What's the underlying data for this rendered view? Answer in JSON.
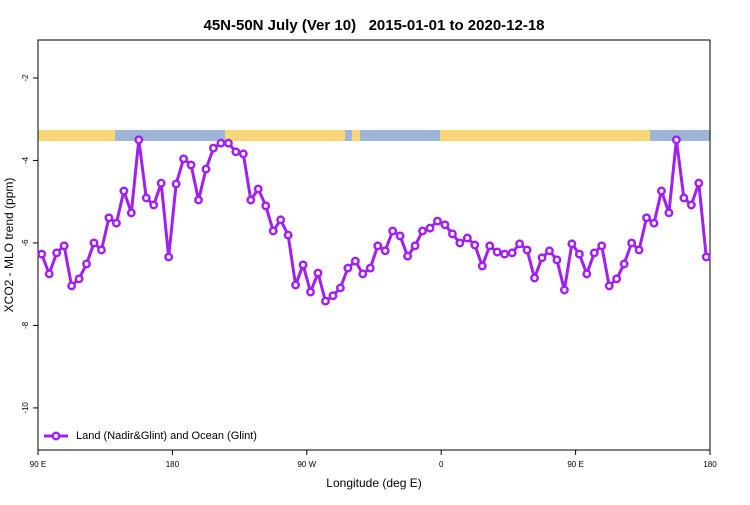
{
  "chart_data": {
    "type": "line",
    "title": "45N-50N July (Ver 10)   2015-01-01 to 2020-12-18",
    "xlabel": "Longitude (deg E)",
    "ylabel": "XCO2 - MLO trend (ppm)",
    "xlim": [
      90,
      540
    ],
    "ylim": [
      -11.02,
      -1.08
    ],
    "xticks": [
      {
        "value": 90,
        "label": "90 E"
      },
      {
        "value": 180,
        "label": "180"
      },
      {
        "value": 270,
        "label": "90 W"
      },
      {
        "value": 360,
        "label": "0"
      },
      {
        "value": 450,
        "label": "90 E"
      },
      {
        "value": 540,
        "label": "180"
      }
    ],
    "yticks": [
      -2,
      -4,
      -6,
      -8,
      -10
    ],
    "legend": "bottom-left",
    "x": [
      92.5,
      97.5,
      102.5,
      107.5,
      112.5,
      117.5,
      122.5,
      127.5,
      132.5,
      137.5,
      142.5,
      147.5,
      152.5,
      157.5,
      162.5,
      167.5,
      172.5,
      177.5,
      182.5,
      187.5,
      192.5,
      197.5,
      202.5,
      207.5,
      212.5,
      217.5,
      222.5,
      227.5,
      232.5,
      237.5,
      242.5,
      247.5,
      252.5,
      257.5,
      262.5,
      267.5,
      272.5,
      277.5,
      282.5,
      287.5,
      292.5,
      297.5,
      302.5,
      307.5,
      312.5,
      317.5,
      322.5,
      327.5,
      332.5,
      337.5,
      342.5,
      347.5,
      352.5,
      357.5,
      362.5,
      367.5,
      372.5,
      377.5,
      382.5,
      387.5,
      392.5,
      397.5,
      402.5,
      407.5,
      412.5,
      417.5,
      422.5,
      427.5,
      432.5,
      437.5,
      442.5,
      447.5,
      452.5,
      457.5,
      462.5,
      467.5,
      472.5,
      477.5,
      482.5,
      487.5,
      492.5,
      497.5,
      502.5,
      507.5,
      512.5,
      517.5,
      522.5,
      527.5,
      532.5,
      537.5
    ],
    "series": [
      {
        "name": "Land (Nadir&Glint) and Ocean (Glint)",
        "color": "#a020f0",
        "values": [
          -6.27,
          -6.75,
          -6.24,
          -6.07,
          -7.04,
          -6.87,
          -6.51,
          -6.0,
          -6.17,
          -5.39,
          -5.52,
          -4.74,
          -5.27,
          -3.5,
          -4.91,
          -5.08,
          -4.55,
          -6.34,
          -4.57,
          -3.96,
          -4.11,
          -4.96,
          -4.21,
          -3.7,
          -3.58,
          -3.58,
          -3.79,
          -3.84,
          -4.96,
          -4.69,
          -5.1,
          -5.71,
          -5.44,
          -5.81,
          -7.02,
          -6.53,
          -7.19,
          -6.73,
          -7.41,
          -7.28,
          -7.09,
          -6.61,
          -6.44,
          -6.75,
          -6.61,
          -6.07,
          -6.19,
          -5.71,
          -5.83,
          -6.32,
          -6.07,
          -5.71,
          -5.64,
          -5.47,
          -5.56,
          -5.78,
          -6.0,
          -5.88,
          -6.05,
          -6.56,
          -6.07,
          -6.22,
          -6.27,
          -6.24,
          -6.02,
          -6.17,
          -6.85,
          -6.36,
          -6.19,
          -6.41,
          -7.14,
          -6.02,
          -6.27,
          -6.75,
          -6.24,
          -6.07,
          -7.04,
          -6.87,
          -6.51,
          -6.0,
          -6.17,
          -5.39,
          -5.52,
          -4.74,
          -5.27,
          -3.5,
          -4.91,
          -5.08,
          -4.55,
          -6.34
        ]
      }
    ]
  }
}
